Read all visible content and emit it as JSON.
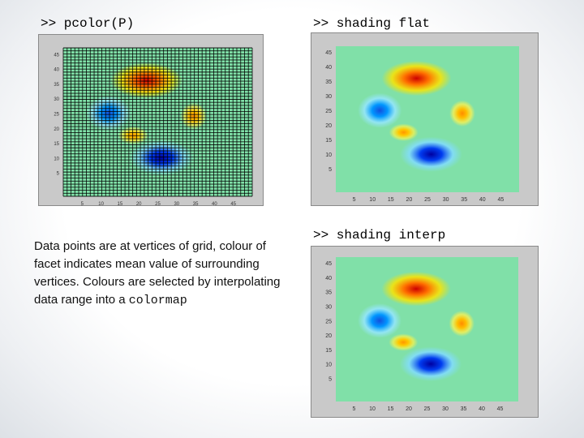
{
  "captions": {
    "pcolor": ">> pcolor(P)",
    "flat": ">> shading flat",
    "interp": ">> shading interp"
  },
  "description": {
    "text": "Data points are at vertices of grid, colour of facet indicates mean value of surrounding vertices. Colours are selected by interpolating data range into a ",
    "code": "colormap"
  },
  "axes": {
    "x_ticks": [
      "5",
      "10",
      "15",
      "20",
      "25",
      "30",
      "35",
      "40",
      "45"
    ],
    "y_ticks": [
      "45",
      "40",
      "35",
      "30",
      "25",
      "20",
      "15",
      "10",
      "5"
    ]
  },
  "colors": {
    "background": "#80e0a8",
    "panel": "#c9c9c9",
    "grid": "#000000"
  }
}
